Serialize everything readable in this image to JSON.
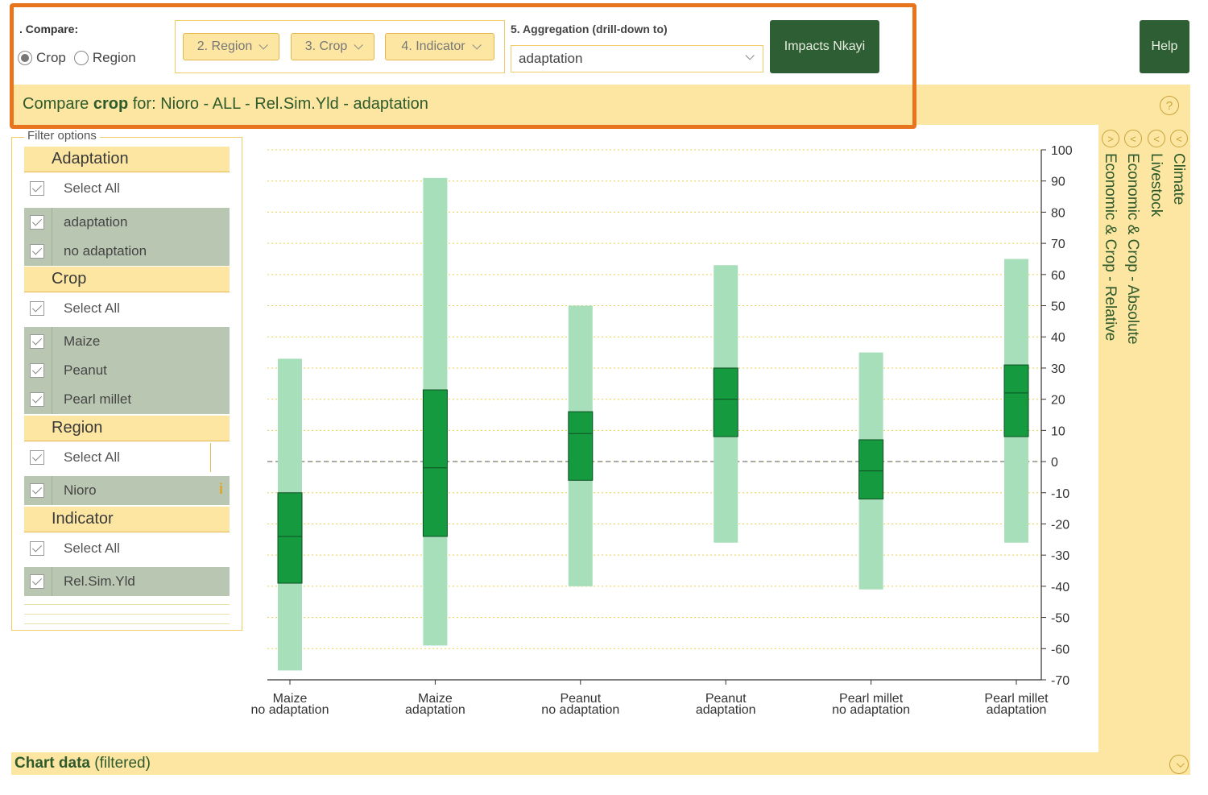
{
  "header": {
    "compare_label": ". Compare:",
    "radio_crop": "Crop",
    "radio_region": "Region",
    "selected_mode": "Crop",
    "dropdowns": [
      {
        "label": "2. Region"
      },
      {
        "label": "3. Crop"
      },
      {
        "label": "4. Indicator"
      }
    ],
    "aggregation_label": "5. Aggregation (drill-down to)",
    "aggregation_value": "adaptation",
    "impacts_button": "Impacts Nkayi",
    "help_button": "Help",
    "help_icon": "?"
  },
  "compare_line": {
    "prefix": "Compare",
    "bold": "crop",
    "rest": "for: Nioro - ALL - Rel.Sim.Yld - adaptation"
  },
  "filter": {
    "legend": "Filter options",
    "groups": [
      {
        "title": "Adaptation",
        "select_all": "Select All",
        "items": [
          "adaptation",
          "no adaptation"
        ]
      },
      {
        "title": "Crop",
        "select_all": "Select All",
        "items": [
          "Maize",
          "Peanut",
          "Pearl millet"
        ]
      },
      {
        "title": "Region",
        "select_all": "Select All",
        "items": [
          "Nioro"
        ]
      },
      {
        "title": "Indicator",
        "select_all": "Select All",
        "items": [
          "Rel.Sim.Yld"
        ]
      }
    ],
    "info_icon": "i"
  },
  "sidebar": {
    "items": [
      {
        "label": "Climate",
        "arrow": "<"
      },
      {
        "label": "Livestock",
        "arrow": "<"
      },
      {
        "label": "Economic & Crop - Absolute",
        "arrow": "<"
      },
      {
        "label": "Economic & Crop - Relative",
        "arrow": ">"
      }
    ]
  },
  "chart_data_bar": {
    "bold": "Chart data",
    "rest": "(filtered)"
  },
  "chart_data": {
    "type": "box",
    "ylim": [
      -70,
      100
    ],
    "yticks": [
      100,
      90,
      80,
      70,
      60,
      50,
      40,
      30,
      20,
      10,
      0,
      -10,
      -20,
      -30,
      -40,
      -50,
      -60,
      -70
    ],
    "reference_line": 0,
    "colors": {
      "range": "#a8dfbb",
      "iqr": "#169a40",
      "grid": "#e8d04a"
    },
    "categories": [
      {
        "line1": "Maize",
        "line2": "no adaptation",
        "min": -67,
        "q1": -39,
        "median": -24,
        "q3": -10,
        "max": 33
      },
      {
        "line1": "Maize",
        "line2": "adaptation",
        "min": -59,
        "q1": -24,
        "median": -2,
        "q3": 23,
        "max": 91
      },
      {
        "line1": "Peanut",
        "line2": "no adaptation",
        "min": -40,
        "q1": -6,
        "median": 9,
        "q3": 16,
        "max": 50
      },
      {
        "line1": "Peanut",
        "line2": "adaptation",
        "min": -26,
        "q1": 8,
        "median": 20,
        "q3": 30,
        "max": 63
      },
      {
        "line1": "Pearl millet",
        "line2": "no adaptation",
        "min": -41,
        "q1": -12,
        "median": -3,
        "q3": 7,
        "max": 35
      },
      {
        "line1": "Pearl millet",
        "line2": "adaptation",
        "min": -26,
        "q1": 8,
        "median": 22,
        "q3": 31,
        "max": 65
      }
    ]
  }
}
